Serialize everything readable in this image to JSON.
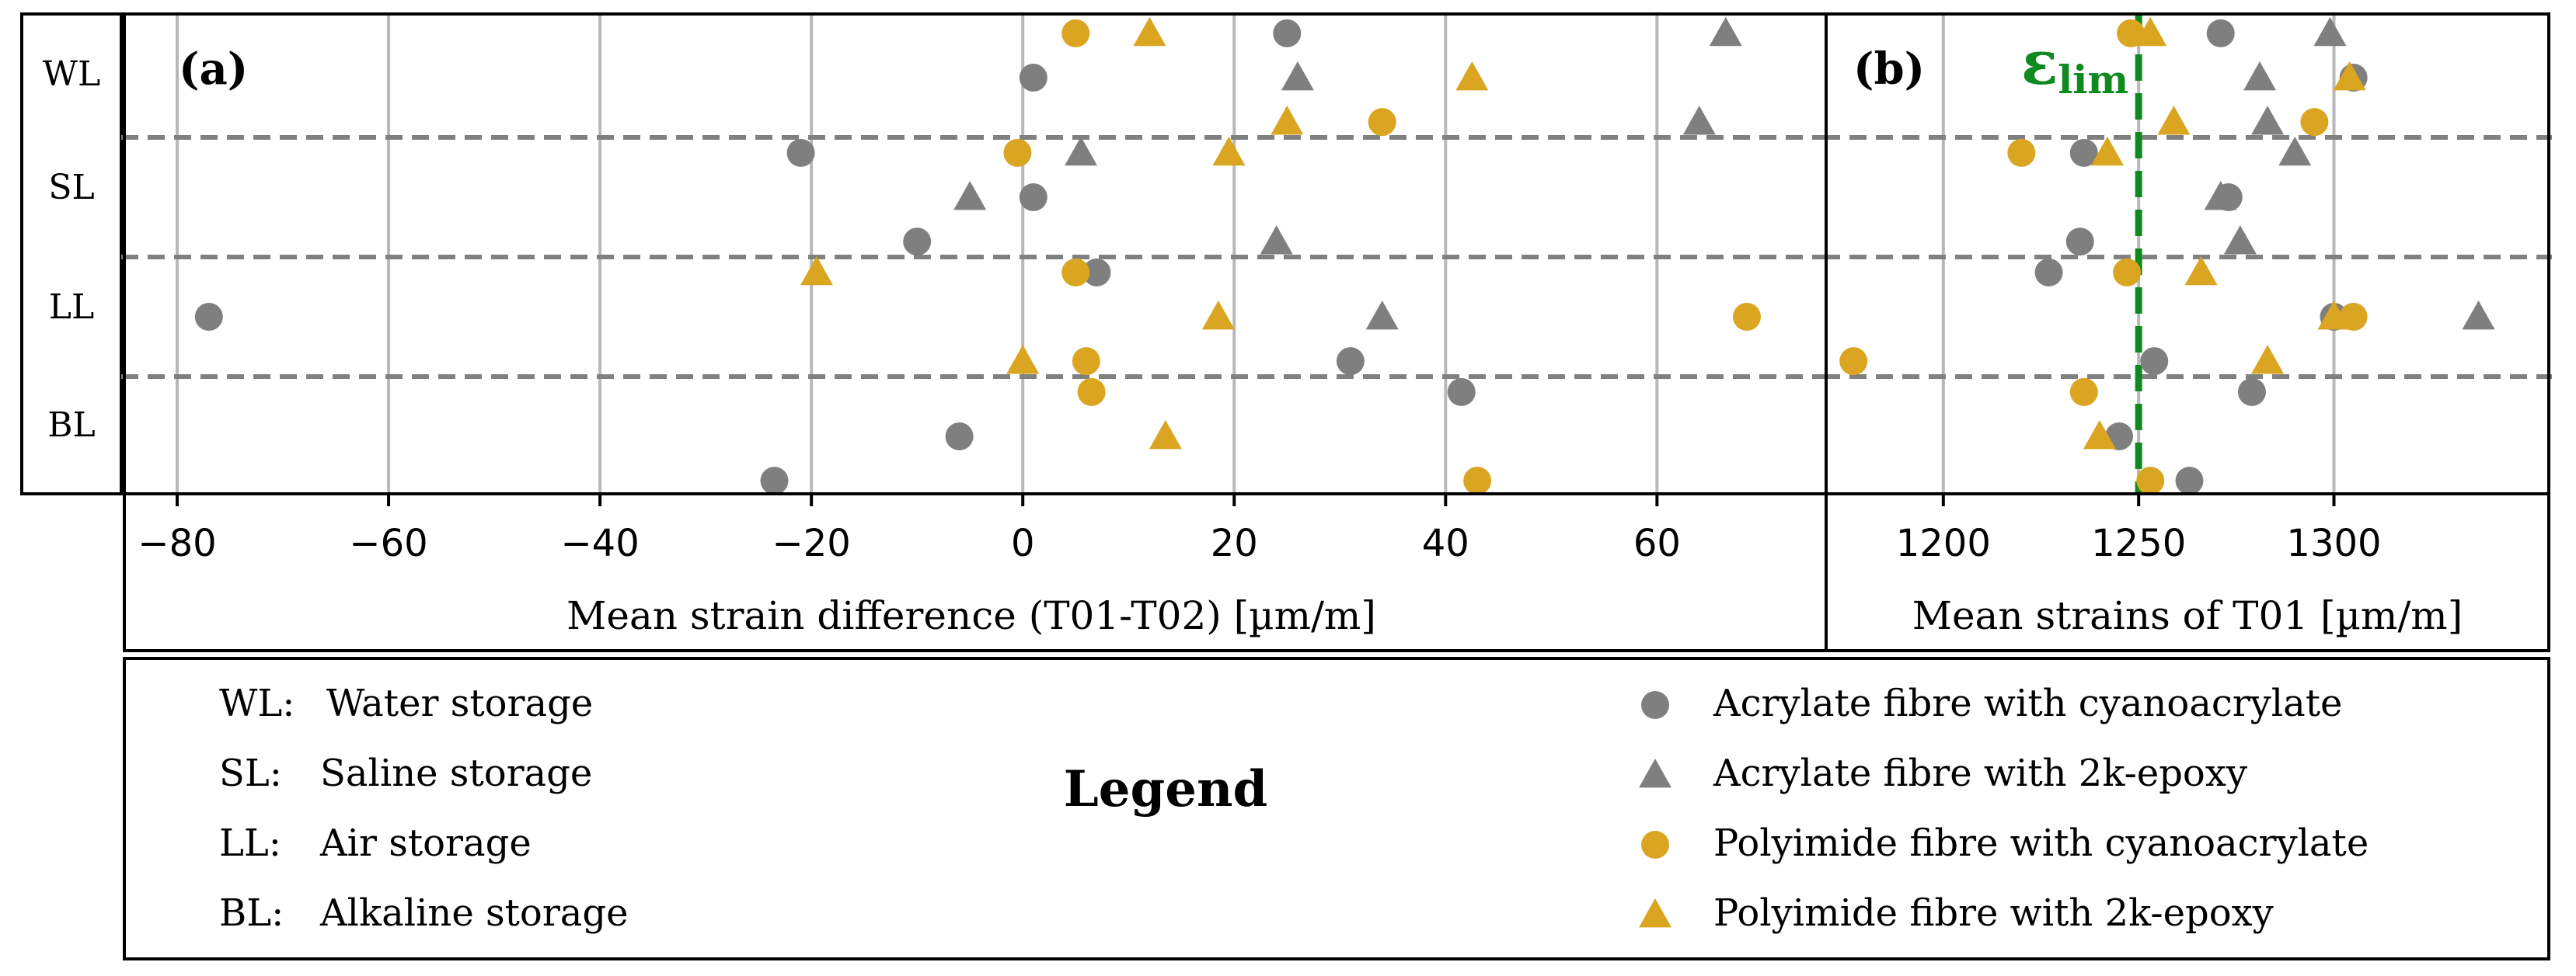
{
  "row_labels": [
    "WL",
    "SL",
    "LL",
    "BL"
  ],
  "colors": {
    "acrylate": "#7f7f7f",
    "polyimide": "#daa520",
    "limit_line": "#0f8a1f",
    "grid": "#b8b8b8",
    "separator": "#808080"
  },
  "chart_data": [
    {
      "type": "scatter",
      "panel_label": "(a)",
      "xlabel": "Mean strain difference (T01-T02) [µm/m]",
      "xlim": [
        -85,
        76
      ],
      "xticks": [
        -80,
        -60,
        -40,
        -20,
        0,
        20,
        40,
        60
      ],
      "xtick_labels": [
        "−80",
        "−60",
        "−40",
        "−20",
        "0",
        "20",
        "40",
        "60"
      ],
      "categories": [
        "WL",
        "SL",
        "LL",
        "BL"
      ],
      "grid": "vertical",
      "series": [
        {
          "name": "Acrylate fibre with cyanoacrylate",
          "marker": "circle",
          "color": "#7f7f7f",
          "points": [
            {
              "x": 25,
              "row": "WL",
              "offset": -0.28
            },
            {
              "x": 1,
              "row": "WL",
              "offset": 0.0
            },
            {
              "x": -21,
              "row": "SL",
              "offset": -0.28
            },
            {
              "x": 1,
              "row": "SL",
              "offset": 0.0
            },
            {
              "x": -10,
              "row": "SL",
              "offset": 0.28
            },
            {
              "x": -77,
              "row": "LL",
              "offset": 0.0
            },
            {
              "x": 7,
              "row": "LL",
              "offset": -0.28
            },
            {
              "x": 31,
              "row": "LL",
              "offset": 0.28
            },
            {
              "x": 41.5,
              "row": "BL",
              "offset": -0.28
            },
            {
              "x": -6,
              "row": "BL",
              "offset": 0.0
            },
            {
              "x": -23.5,
              "row": "BL",
              "offset": 0.28
            }
          ]
        },
        {
          "name": "Acrylate fibre with 2k-epoxy",
          "marker": "triangle",
          "color": "#7f7f7f",
          "points": [
            {
              "x": 66.5,
              "row": "WL",
              "offset": -0.28
            },
            {
              "x": 26,
              "row": "WL",
              "offset": 0.0
            },
            {
              "x": 64,
              "row": "WL",
              "offset": 0.28
            },
            {
              "x": 5.5,
              "row": "SL",
              "offset": -0.28
            },
            {
              "x": -5,
              "row": "SL",
              "offset": 0.0
            },
            {
              "x": 24,
              "row": "SL",
              "offset": 0.28
            },
            {
              "x": 34,
              "row": "LL",
              "offset": 0.0
            }
          ]
        },
        {
          "name": "Polyimide fibre with cyanoacrylate",
          "marker": "circle",
          "color": "#daa520",
          "points": [
            {
              "x": 5,
              "row": "WL",
              "offset": -0.28
            },
            {
              "x": 34,
              "row": "WL",
              "offset": 0.28
            },
            {
              "x": -0.5,
              "row": "SL",
              "offset": -0.28
            },
            {
              "x": 5,
              "row": "LL",
              "offset": -0.28
            },
            {
              "x": 68.5,
              "row": "LL",
              "offset": 0.0
            },
            {
              "x": 6,
              "row": "LL",
              "offset": 0.28
            },
            {
              "x": 6.5,
              "row": "BL",
              "offset": -0.28
            },
            {
              "x": 43,
              "row": "BL",
              "offset": 0.28
            }
          ]
        },
        {
          "name": "Polyimide fibre with 2k-epoxy",
          "marker": "triangle",
          "color": "#daa520",
          "points": [
            {
              "x": 12,
              "row": "WL",
              "offset": -0.28
            },
            {
              "x": 42.5,
              "row": "WL",
              "offset": 0.0
            },
            {
              "x": 25,
              "row": "WL",
              "offset": 0.28
            },
            {
              "x": 19.5,
              "row": "SL",
              "offset": -0.28
            },
            {
              "x": -19.5,
              "row": "LL",
              "offset": -0.28
            },
            {
              "x": 18.5,
              "row": "LL",
              "offset": 0.0
            },
            {
              "x": 0,
              "row": "LL",
              "offset": 0.28
            },
            {
              "x": 13.5,
              "row": "BL",
              "offset": 0.0
            }
          ]
        }
      ]
    },
    {
      "type": "scatter",
      "panel_label": "(b)",
      "xlabel": "Mean strains of T01 [µm/m]",
      "xlim": [
        1170,
        1355
      ],
      "xticks": [
        1200,
        1250,
        1300
      ],
      "xtick_labels": [
        "1200",
        "1250",
        "1300"
      ],
      "categories": [
        "WL",
        "SL",
        "LL",
        "BL"
      ],
      "grid": "vertical",
      "limit_line": {
        "x": 1250,
        "label": "ε",
        "subscript": "lim"
      },
      "series": [
        {
          "name": "Acrylate fibre with cyanoacrylate",
          "marker": "circle",
          "color": "#7f7f7f",
          "points": [
            {
              "x": 1271,
              "row": "WL",
              "offset": -0.28
            },
            {
              "x": 1305,
              "row": "WL",
              "offset": 0.0
            },
            {
              "x": 1236,
              "row": "SL",
              "offset": -0.28
            },
            {
              "x": 1273,
              "row": "SL",
              "offset": 0.0
            },
            {
              "x": 1235,
              "row": "SL",
              "offset": 0.28
            },
            {
              "x": 1227,
              "row": "LL",
              "offset": -0.28
            },
            {
              "x": 1300,
              "row": "LL",
              "offset": 0.0
            },
            {
              "x": 1254,
              "row": "LL",
              "offset": 0.28
            },
            {
              "x": 1279,
              "row": "BL",
              "offset": -0.28
            },
            {
              "x": 1245,
              "row": "BL",
              "offset": 0.0
            },
            {
              "x": 1263,
              "row": "BL",
              "offset": 0.28
            }
          ]
        },
        {
          "name": "Acrylate fibre with 2k-epoxy",
          "marker": "triangle",
          "color": "#7f7f7f",
          "points": [
            {
              "x": 1299,
              "row": "WL",
              "offset": -0.28
            },
            {
              "x": 1281,
              "row": "WL",
              "offset": 0.0
            },
            {
              "x": 1283,
              "row": "WL",
              "offset": 0.28
            },
            {
              "x": 1290,
              "row": "SL",
              "offset": -0.28
            },
            {
              "x": 1271,
              "row": "SL",
              "offset": 0.0
            },
            {
              "x": 1276,
              "row": "SL",
              "offset": 0.28
            },
            {
              "x": 1337,
              "row": "LL",
              "offset": 0.0
            }
          ]
        },
        {
          "name": "Polyimide fibre with cyanoacrylate",
          "marker": "circle",
          "color": "#daa520",
          "points": [
            {
              "x": 1248,
              "row": "WL",
              "offset": -0.28
            },
            {
              "x": 1295,
              "row": "WL",
              "offset": 0.28
            },
            {
              "x": 1220,
              "row": "SL",
              "offset": -0.28
            },
            {
              "x": 1247,
              "row": "LL",
              "offset": -0.28
            },
            {
              "x": 1305,
              "row": "LL",
              "offset": 0.0
            },
            {
              "x": 1177,
              "row": "LL",
              "offset": 0.28
            },
            {
              "x": 1236,
              "row": "BL",
              "offset": -0.28
            },
            {
              "x": 1253,
              "row": "BL",
              "offset": 0.28
            }
          ]
        },
        {
          "name": "Polyimide fibre with 2k-epoxy",
          "marker": "triangle",
          "color": "#daa520",
          "points": [
            {
              "x": 1253,
              "row": "WL",
              "offset": -0.28
            },
            {
              "x": 1304,
              "row": "WL",
              "offset": 0.0
            },
            {
              "x": 1259,
              "row": "WL",
              "offset": 0.28
            },
            {
              "x": 1242,
              "row": "SL",
              "offset": -0.28
            },
            {
              "x": 1266,
              "row": "LL",
              "offset": -0.28
            },
            {
              "x": 1300,
              "row": "LL",
              "offset": 0.0
            },
            {
              "x": 1283,
              "row": "LL",
              "offset": 0.28
            },
            {
              "x": 1240,
              "row": "BL",
              "offset": 0.0
            }
          ]
        }
      ]
    }
  ],
  "legend": {
    "title": "Legend",
    "abbreviations": [
      {
        "key": "WL:",
        "text": "Water storage"
      },
      {
        "key": "SL:",
        "text": "Saline storage"
      },
      {
        "key": "LL:",
        "text": "Air storage"
      },
      {
        "key": "BL:",
        "text": "Alkaline storage"
      }
    ],
    "markers": [
      {
        "label": "Acrylate fibre with cyanoacrylate",
        "marker": "circle",
        "color": "#7f7f7f"
      },
      {
        "label": "Acrylate fibre with 2k-epoxy",
        "marker": "triangle",
        "color": "#7f7f7f"
      },
      {
        "label": "Polyimide fibre with cyanoacrylate",
        "marker": "circle",
        "color": "#daa520"
      },
      {
        "label": "Polyimide fibre with 2k-epoxy",
        "marker": "triangle",
        "color": "#daa520"
      }
    ]
  }
}
